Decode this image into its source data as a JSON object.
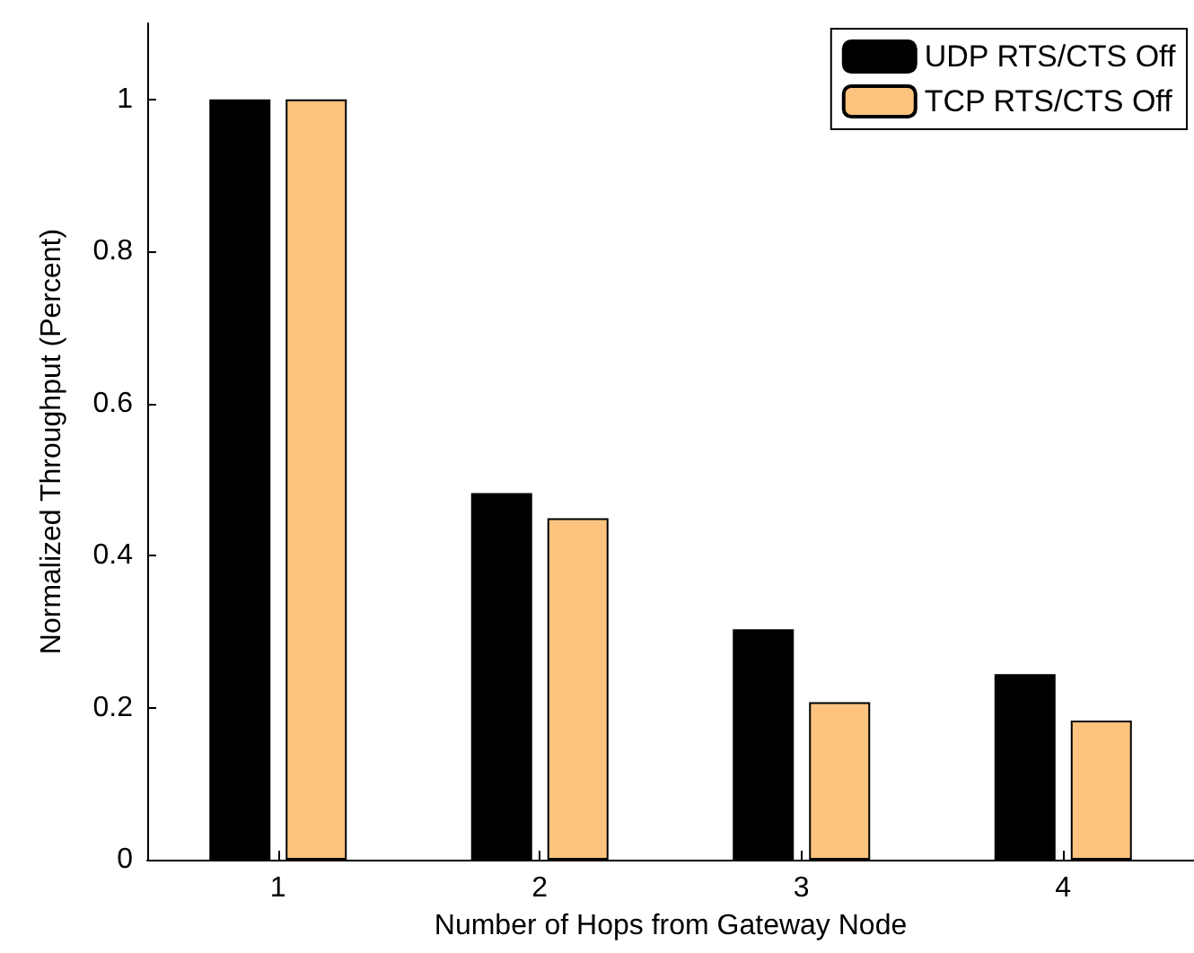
{
  "chart_data": {
    "type": "bar",
    "xlabel": "Number of Hops from Gateway Node",
    "ylabel": "Normalized Throughput (Percent)",
    "categories": [
      "1",
      "2",
      "3",
      "4"
    ],
    "series": [
      {
        "name": "UDP RTS/CTS Off",
        "color": "#000000",
        "values": [
          1.0,
          0.482,
          0.303,
          0.244
        ]
      },
      {
        "name": "TCP RTS/CTS Off",
        "color": "#fdc47f",
        "values": [
          1.0,
          0.449,
          0.207,
          0.183
        ]
      }
    ],
    "ylim": [
      0,
      1.1
    ],
    "yticks": [
      0,
      0.2,
      0.4,
      0.6,
      0.8,
      1
    ],
    "grid": false,
    "legend": "top right"
  }
}
